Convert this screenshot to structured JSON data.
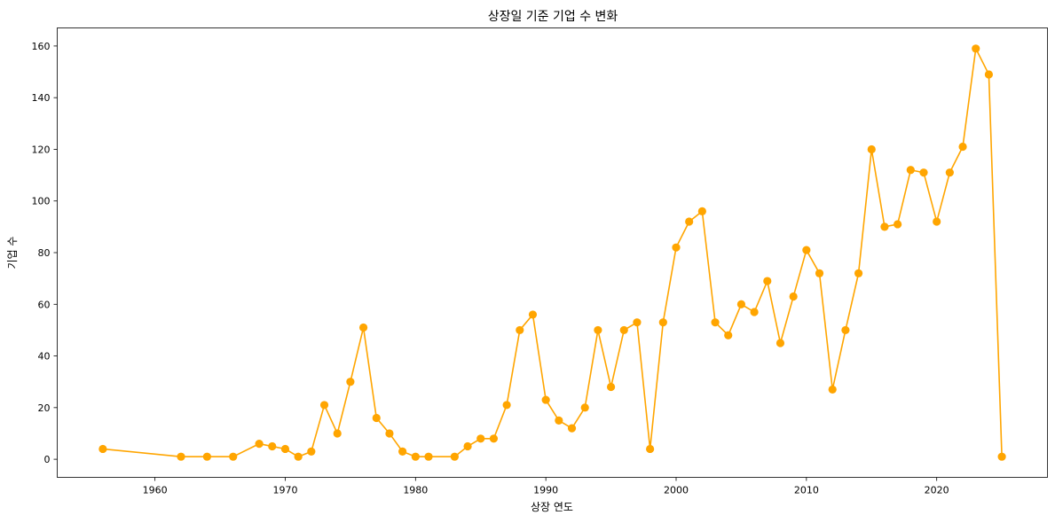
{
  "chart_data": {
    "type": "line",
    "title": "상장일 기준 기업 수 변화",
    "xlabel": "상장 연도",
    "ylabel": "기업 수",
    "xlim": [
      1952.5,
      2028.5
    ],
    "ylim": [
      -7,
      167
    ],
    "xticks": [
      1960,
      1970,
      1980,
      1990,
      2000,
      2010,
      2020
    ],
    "yticks": [
      0,
      20,
      40,
      60,
      80,
      100,
      120,
      140,
      160
    ],
    "grid": false,
    "color": "#FFA500",
    "marker": "circle",
    "series": [
      {
        "x": [
          1956,
          1962,
          1964,
          1966,
          1968,
          1969,
          1970,
          1971,
          1972,
          1973,
          1974,
          1975,
          1976,
          1977,
          1978,
          1979,
          1980,
          1981,
          1983,
          1984,
          1985,
          1986,
          1987,
          1988,
          1989,
          1990,
          1991,
          1992,
          1993,
          1994,
          1995,
          1996,
          1997,
          1998,
          1999,
          2000,
          2001,
          2002,
          2003,
          2004,
          2005,
          2006,
          2007,
          2008,
          2009,
          2010,
          2011,
          2012,
          2013,
          2014,
          2015,
          2016,
          2017,
          2018,
          2019,
          2020,
          2021,
          2022,
          2023,
          2024,
          2025
        ],
        "y": [
          4,
          1,
          1,
          1,
          6,
          5,
          4,
          1,
          3,
          21,
          10,
          30,
          51,
          16,
          10,
          3,
          1,
          1,
          1,
          5,
          8,
          8,
          21,
          50,
          56,
          23,
          15,
          12,
          20,
          50,
          28,
          50,
          53,
          4,
          53,
          82,
          92,
          96,
          53,
          48,
          60,
          57,
          69,
          45,
          63,
          81,
          72,
          27,
          50,
          72,
          120,
          90,
          91,
          112,
          111,
          92,
          111,
          121,
          159,
          149,
          1
        ]
      }
    ]
  }
}
